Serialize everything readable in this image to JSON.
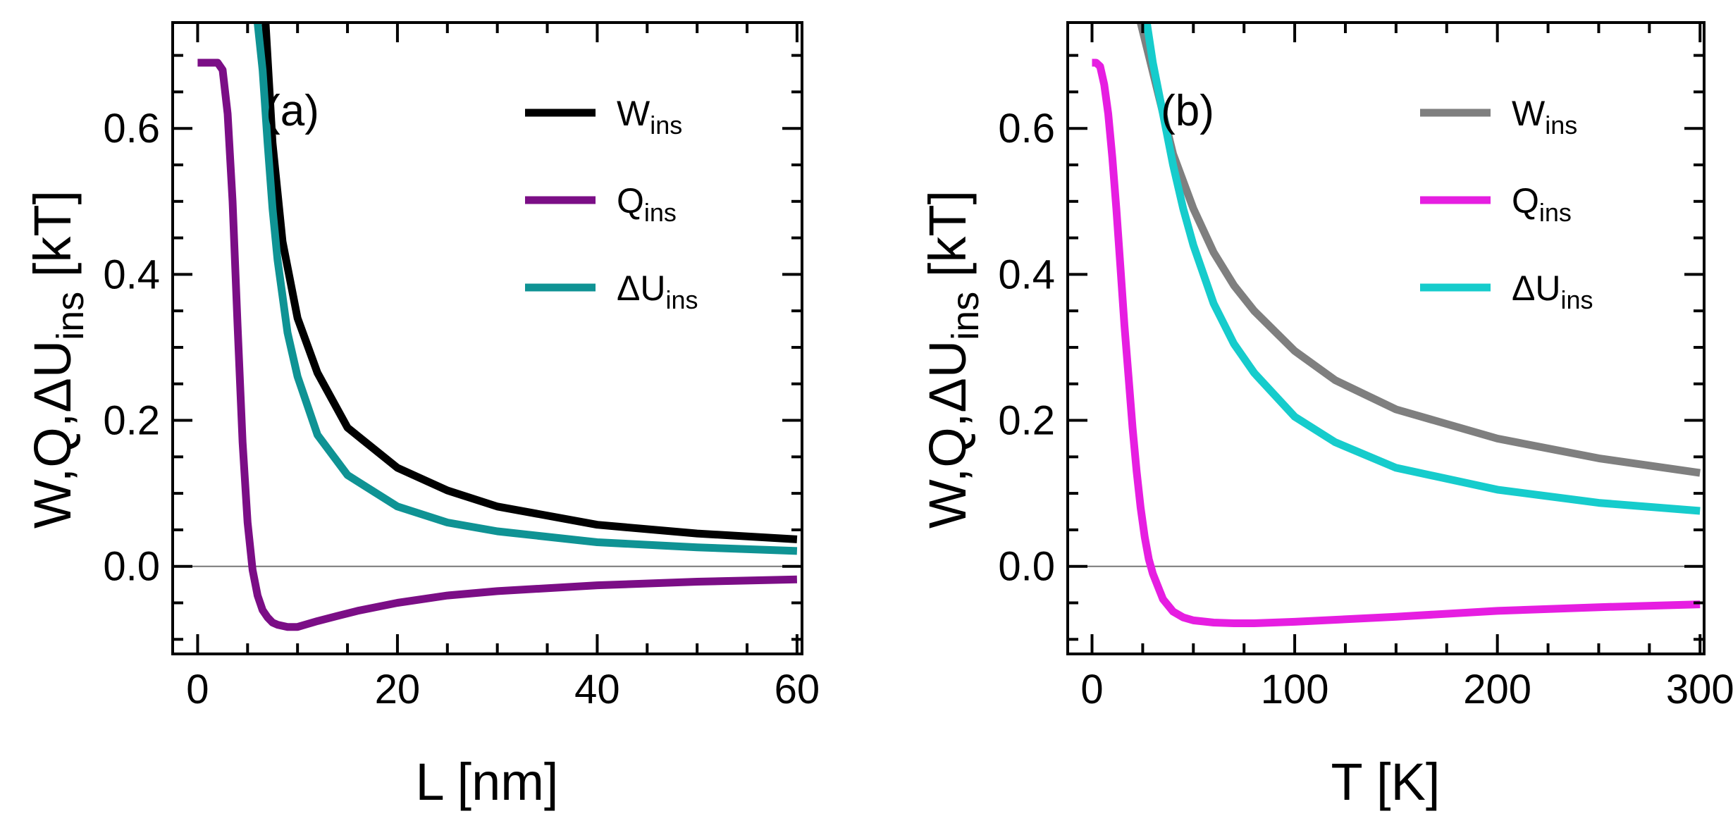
{
  "chart_data": [
    {
      "type": "line",
      "panel_label": "(a)",
      "xlabel": "L [nm]",
      "ylabel": {
        "main": "W,Q,ΔU",
        "sub": "ins",
        "unit": " [kT]"
      },
      "xlim": [
        -2.5,
        60.5
      ],
      "ylim": [
        -0.12,
        0.745
      ],
      "xticks": [
        0,
        20,
        40,
        60
      ],
      "xtick_labels": [
        "0",
        "20",
        "40",
        "60"
      ],
      "yticks": [
        0.0,
        0.2,
        0.4,
        0.6
      ],
      "ytick_labels": [
        "0.0",
        "0.2",
        "0.4",
        "0.6"
      ],
      "x_minor_step": 5,
      "y_minor_step": 0.05,
      "zero_line": true,
      "legend_position": "top-right",
      "series": [
        {
          "name": "W",
          "sub": "ins",
          "color": "#000000",
          "x": [
            6.8,
            7.5,
            8.5,
            10,
            12,
            15,
            20,
            25,
            30,
            40,
            50,
            60
          ],
          "y": [
            0.745,
            0.58,
            0.445,
            0.34,
            0.265,
            0.19,
            0.135,
            0.104,
            0.082,
            0.057,
            0.045,
            0.037
          ]
        },
        {
          "name": "Q",
          "sub": "ins",
          "color": "#7b0e86",
          "x": [
            0,
            1,
            2,
            2.5,
            3,
            3.5,
            4,
            4.5,
            5,
            5.5,
            6,
            6.5,
            7,
            7.5,
            8,
            9,
            10,
            11,
            12,
            14,
            16,
            20,
            25,
            30,
            40,
            50,
            60
          ],
          "y": [
            0.69,
            0.69,
            0.69,
            0.68,
            0.62,
            0.5,
            0.33,
            0.17,
            0.06,
            -0.005,
            -0.04,
            -0.06,
            -0.07,
            -0.077,
            -0.08,
            -0.083,
            -0.083,
            -0.079,
            -0.075,
            -0.068,
            -0.061,
            -0.05,
            -0.04,
            -0.034,
            -0.026,
            -0.021,
            -0.018
          ]
        },
        {
          "name": "ΔU",
          "sub": "ins",
          "color": "#0f9394",
          "x": [
            6.0,
            6.5,
            7,
            7.5,
            8,
            9,
            10,
            12,
            15,
            20,
            25,
            30,
            40,
            50,
            60
          ],
          "y": [
            0.745,
            0.68,
            0.58,
            0.49,
            0.42,
            0.32,
            0.26,
            0.18,
            0.125,
            0.082,
            0.06,
            0.048,
            0.033,
            0.026,
            0.021
          ]
        }
      ]
    },
    {
      "type": "line",
      "panel_label": "(b)",
      "xlabel": "T [K]",
      "ylabel": {
        "main": "W,Q,ΔU",
        "sub": "ins",
        "unit": " [kT]"
      },
      "xlim": [
        -12,
        302
      ],
      "ylim": [
        -0.12,
        0.745
      ],
      "xticks": [
        0,
        100,
        200,
        300
      ],
      "xtick_labels": [
        "0",
        "100",
        "200",
        "300"
      ],
      "yticks": [
        0.0,
        0.2,
        0.4,
        0.6
      ],
      "ytick_labels": [
        "0.0",
        "0.2",
        "0.4",
        "0.6"
      ],
      "x_minor_step": 25,
      "y_minor_step": 0.05,
      "zero_line": true,
      "legend_position": "top-right",
      "series": [
        {
          "name": "W",
          "sub": "ins",
          "color": "#7f7f7f",
          "x": [
            24,
            28,
            32,
            36,
            40,
            50,
            60,
            70,
            80,
            100,
            120,
            150,
            200,
            250,
            300
          ],
          "y": [
            0.745,
            0.7,
            0.655,
            0.61,
            0.565,
            0.49,
            0.43,
            0.385,
            0.35,
            0.295,
            0.255,
            0.215,
            0.175,
            0.148,
            0.128
          ]
        },
        {
          "name": "Q",
          "sub": "ins",
          "color": "#e61ee1",
          "x": [
            0,
            2,
            4,
            6,
            8,
            10,
            12,
            14,
            16,
            18,
            20,
            22,
            24,
            26,
            28,
            30,
            35,
            40,
            45,
            50,
            60,
            70,
            80,
            100,
            150,
            200,
            250,
            300
          ],
          "y": [
            0.69,
            0.69,
            0.685,
            0.66,
            0.62,
            0.56,
            0.49,
            0.41,
            0.33,
            0.26,
            0.19,
            0.13,
            0.08,
            0.04,
            0.01,
            -0.01,
            -0.045,
            -0.062,
            -0.07,
            -0.074,
            -0.077,
            -0.078,
            -0.078,
            -0.076,
            -0.069,
            -0.061,
            -0.056,
            -0.052
          ]
        },
        {
          "name": "ΔU",
          "sub": "ins",
          "color": "#16cccc",
          "x": [
            27,
            30,
            35,
            40,
            45,
            50,
            60,
            70,
            80,
            100,
            120,
            150,
            200,
            250,
            300
          ],
          "y": [
            0.745,
            0.69,
            0.62,
            0.55,
            0.49,
            0.44,
            0.36,
            0.305,
            0.265,
            0.205,
            0.17,
            0.135,
            0.105,
            0.087,
            0.076
          ]
        }
      ]
    }
  ]
}
